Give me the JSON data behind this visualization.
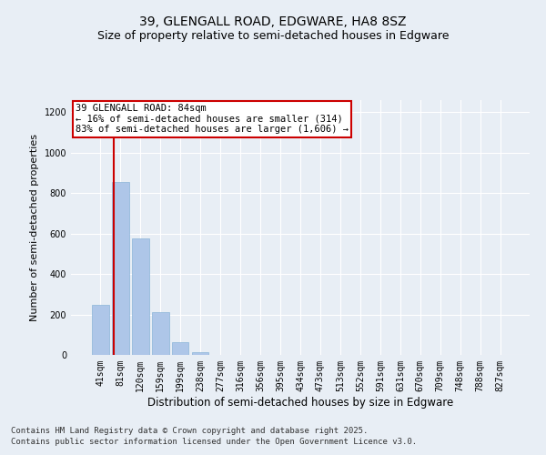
{
  "title1": "39, GLENGALL ROAD, EDGWARE, HA8 8SZ",
  "title2": "Size of property relative to semi-detached houses in Edgware",
  "xlabel": "Distribution of semi-detached houses by size in Edgware",
  "ylabel": "Number of semi-detached properties",
  "categories": [
    "41sqm",
    "81sqm",
    "120sqm",
    "159sqm",
    "199sqm",
    "238sqm",
    "277sqm",
    "316sqm",
    "356sqm",
    "395sqm",
    "434sqm",
    "473sqm",
    "513sqm",
    "552sqm",
    "591sqm",
    "631sqm",
    "670sqm",
    "709sqm",
    "748sqm",
    "788sqm",
    "827sqm"
  ],
  "values": [
    248,
    855,
    578,
    213,
    63,
    15,
    0,
    0,
    0,
    0,
    0,
    0,
    0,
    0,
    0,
    0,
    0,
    0,
    0,
    0,
    0
  ],
  "bar_color": "#aec6e8",
  "bar_edgecolor": "#8ab4d8",
  "property_line_color": "#cc0000",
  "annotation_title": "39 GLENGALL ROAD: 84sqm",
  "annotation_line1": "← 16% of semi-detached houses are smaller (314)",
  "annotation_line2": "83% of semi-detached houses are larger (1,606) →",
  "annotation_box_color": "#cc0000",
  "ylim": [
    0,
    1260
  ],
  "yticks": [
    0,
    200,
    400,
    600,
    800,
    1000,
    1200
  ],
  "footnote1": "Contains HM Land Registry data © Crown copyright and database right 2025.",
  "footnote2": "Contains public sector information licensed under the Open Government Licence v3.0.",
  "bg_color": "#e8eef5",
  "plot_bg_color": "#e8eef5",
  "grid_color": "#ffffff",
  "title1_fontsize": 10,
  "title2_fontsize": 9,
  "tick_fontsize": 7,
  "ylabel_fontsize": 8,
  "xlabel_fontsize": 8.5,
  "footnote_fontsize": 6.5,
  "annotation_fontsize": 7.5
}
